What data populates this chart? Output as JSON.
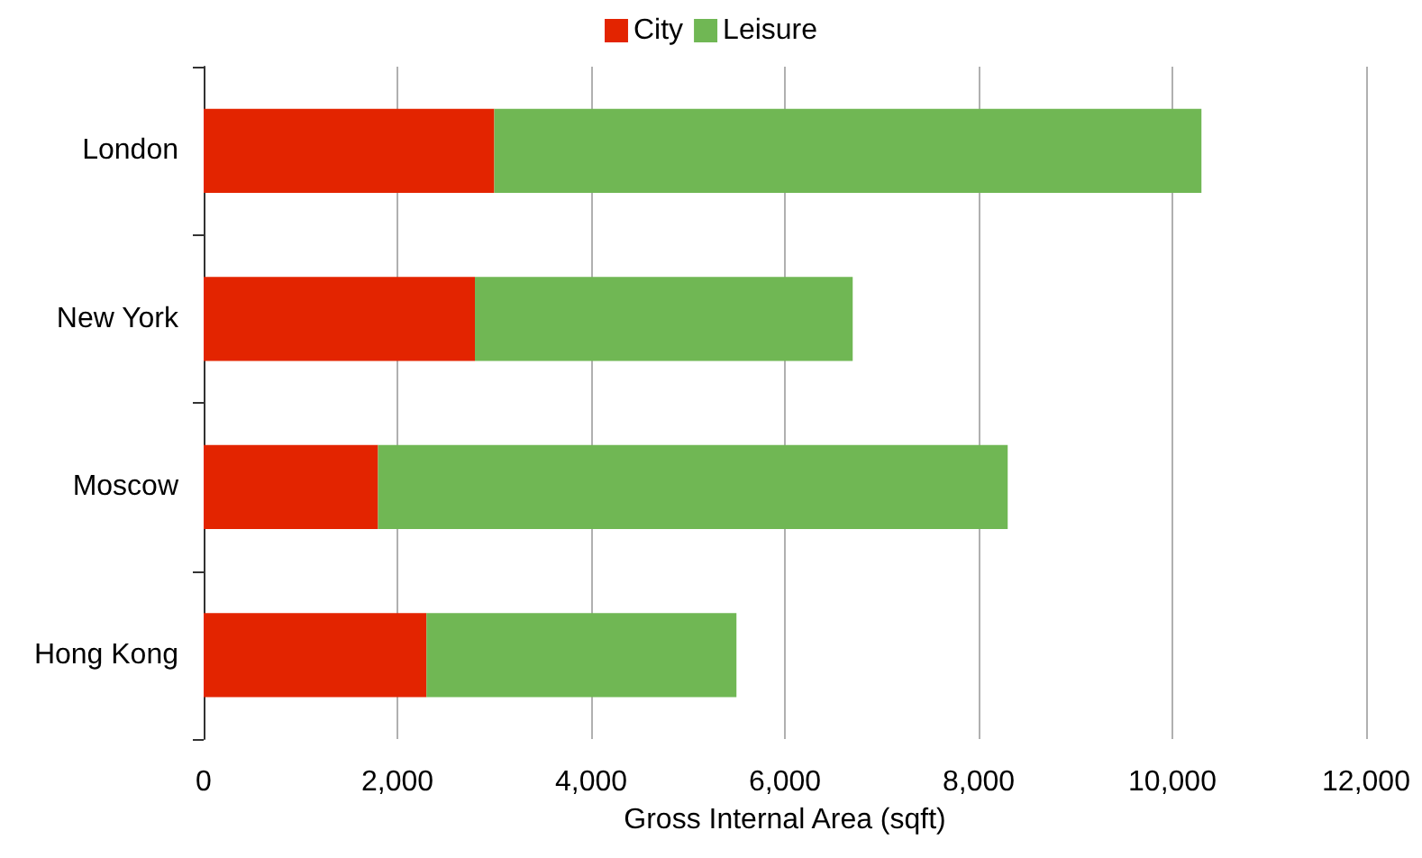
{
  "chart_data": {
    "type": "bar",
    "orientation": "horizontal",
    "stacked": true,
    "categories": [
      "London",
      "New York",
      "Moscow",
      "Hong Kong"
    ],
    "series": [
      {
        "name": "City",
        "color": "#e32400",
        "values": [
          3000,
          2800,
          1800,
          2300
        ]
      },
      {
        "name": "Leisure",
        "color": "#70b754",
        "values": [
          7300,
          3900,
          6500,
          3200
        ]
      }
    ],
    "xlabel": "Gross Internal Area (sqft)",
    "xlim": [
      0,
      12000
    ],
    "xticks": [
      0,
      {
        "value": 2000,
        "label": "2,000"
      },
      {
        "value": 4000,
        "label": "4,000"
      },
      {
        "value": 6000,
        "label": "6,000"
      },
      {
        "value": 8000,
        "label": "8,000"
      },
      {
        "value": 10000,
        "label": "10,000"
      },
      {
        "value": 12000,
        "label": "12,000"
      }
    ],
    "grid": "x",
    "legend": "top"
  }
}
